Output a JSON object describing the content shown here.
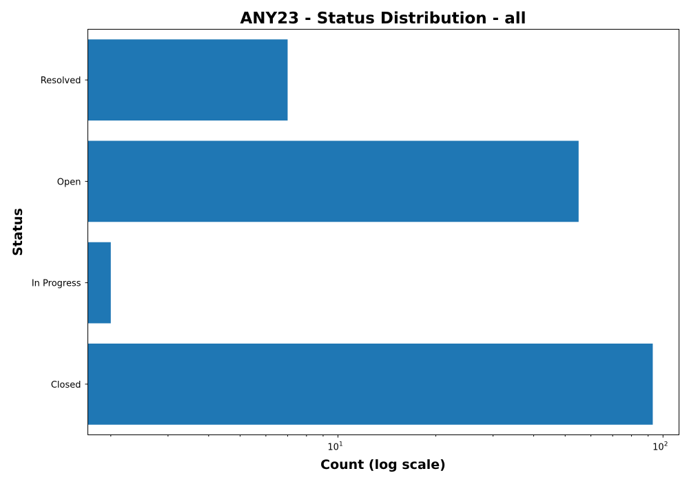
{
  "chart_data": {
    "type": "bar",
    "orientation": "horizontal",
    "title": "ANY23 - Status Distribution - all",
    "xlabel": "Count (log scale)",
    "ylabel": "Status",
    "x_scale": "log",
    "xlim": [
      1.7,
      112
    ],
    "categories": [
      "Closed",
      "In Progress",
      "Open",
      "Resolved"
    ],
    "values": [
      93,
      2,
      55,
      7
    ],
    "x_major_ticks": [
      {
        "value": 10,
        "base": "10",
        "exp": "1"
      },
      {
        "value": 100,
        "base": "10",
        "exp": "2"
      }
    ],
    "bar_color": "#1f77b4",
    "grid": false,
    "legend": "none"
  }
}
